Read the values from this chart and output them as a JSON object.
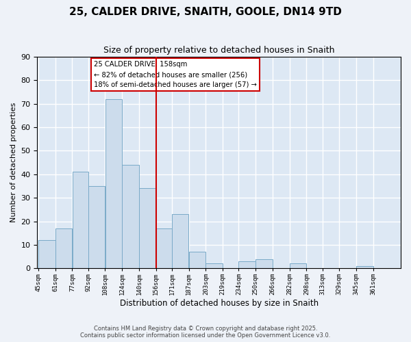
{
  "title": "25, CALDER DRIVE, SNAITH, GOOLE, DN14 9TD",
  "subtitle": "Size of property relative to detached houses in Snaith",
  "xlabel": "Distribution of detached houses by size in Snaith",
  "ylabel": "Number of detached properties",
  "bar_color": "#ccdcec",
  "bar_edge_color": "#7aaac8",
  "background_color": "#dde8f4",
  "fig_color": "#eef2f8",
  "grid_color": "#ffffff",
  "vline_x": 156,
  "vline_color": "#cc0000",
  "categories": [
    "45sqm",
    "61sqm",
    "77sqm",
    "92sqm",
    "108sqm",
    "124sqm",
    "140sqm",
    "156sqm",
    "171sqm",
    "187sqm",
    "203sqm",
    "219sqm",
    "234sqm",
    "250sqm",
    "266sqm",
    "282sqm",
    "298sqm",
    "313sqm",
    "329sqm",
    "345sqm",
    "361sqm"
  ],
  "bin_edges": [
    45,
    61,
    77,
    92,
    108,
    124,
    140,
    156,
    171,
    187,
    203,
    219,
    234,
    250,
    266,
    282,
    298,
    313,
    329,
    345,
    361,
    377
  ],
  "values": [
    12,
    17,
    41,
    35,
    72,
    44,
    34,
    17,
    23,
    7,
    2,
    0,
    3,
    4,
    0,
    2,
    0,
    0,
    0,
    1,
    0
  ],
  "ylim": [
    0,
    90
  ],
  "yticks": [
    0,
    10,
    20,
    30,
    40,
    50,
    60,
    70,
    80,
    90
  ],
  "annotation_title": "25 CALDER DRIVE: 158sqm",
  "annotation_line1": "← 82% of detached houses are smaller (256)",
  "annotation_line2": "18% of semi-detached houses are larger (57) →",
  "annotation_box_color": "#ffffff",
  "annotation_box_edge": "#cc0000",
  "footer1": "Contains HM Land Registry data © Crown copyright and database right 2025.",
  "footer2": "Contains public sector information licensed under the Open Government Licence v3.0."
}
